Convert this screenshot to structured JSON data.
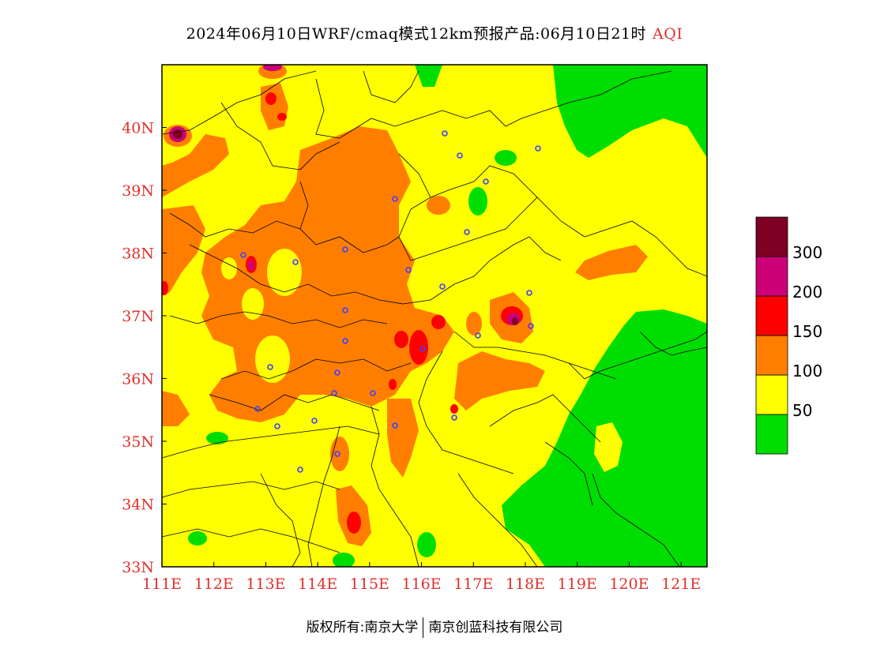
{
  "title": {
    "text": "2024年06月10日WRF/cmaq模式12km预报产品:06月10日21时",
    "variable": "AQI"
  },
  "map": {
    "lon_range": [
      111,
      121.5
    ],
    "lat_range": [
      33,
      41
    ],
    "lon_ticks": [
      {
        "value": 111,
        "label": "111E"
      },
      {
        "value": 112,
        "label": "112E"
      },
      {
        "value": 113,
        "label": "113E"
      },
      {
        "value": 114,
        "label": "114E"
      },
      {
        "value": 115,
        "label": "115E"
      },
      {
        "value": 116,
        "label": "116E"
      },
      {
        "value": 117,
        "label": "117E"
      },
      {
        "value": 118,
        "label": "118E"
      },
      {
        "value": 119,
        "label": "119E"
      },
      {
        "value": 120,
        "label": "120E"
      },
      {
        "value": 121,
        "label": "121E"
      }
    ],
    "lat_ticks": [
      {
        "value": 33,
        "label": "33N"
      },
      {
        "value": 34,
        "label": "34N"
      },
      {
        "value": 35,
        "label": "35N"
      },
      {
        "value": 36,
        "label": "36N"
      },
      {
        "value": 37,
        "label": "37N"
      },
      {
        "value": 38,
        "label": "38N"
      },
      {
        "value": 39,
        "label": "39N"
      },
      {
        "value": 40,
        "label": "40N"
      }
    ],
    "tick_color": "#e0302a"
  },
  "legend": {
    "levels": [
      {
        "color": "#00dd00"
      },
      {
        "color": "#ffff00",
        "label": "50"
      },
      {
        "color": "#ff7e00",
        "label": "100"
      },
      {
        "color": "#ff0000",
        "label": "150"
      },
      {
        "color": "#cc0077",
        "label": "200"
      },
      {
        "color": "#7e0023",
        "label": "300"
      }
    ]
  },
  "footer": {
    "left": "版权所有:南京大学",
    "right": "南京创蓝科技有限公司"
  }
}
